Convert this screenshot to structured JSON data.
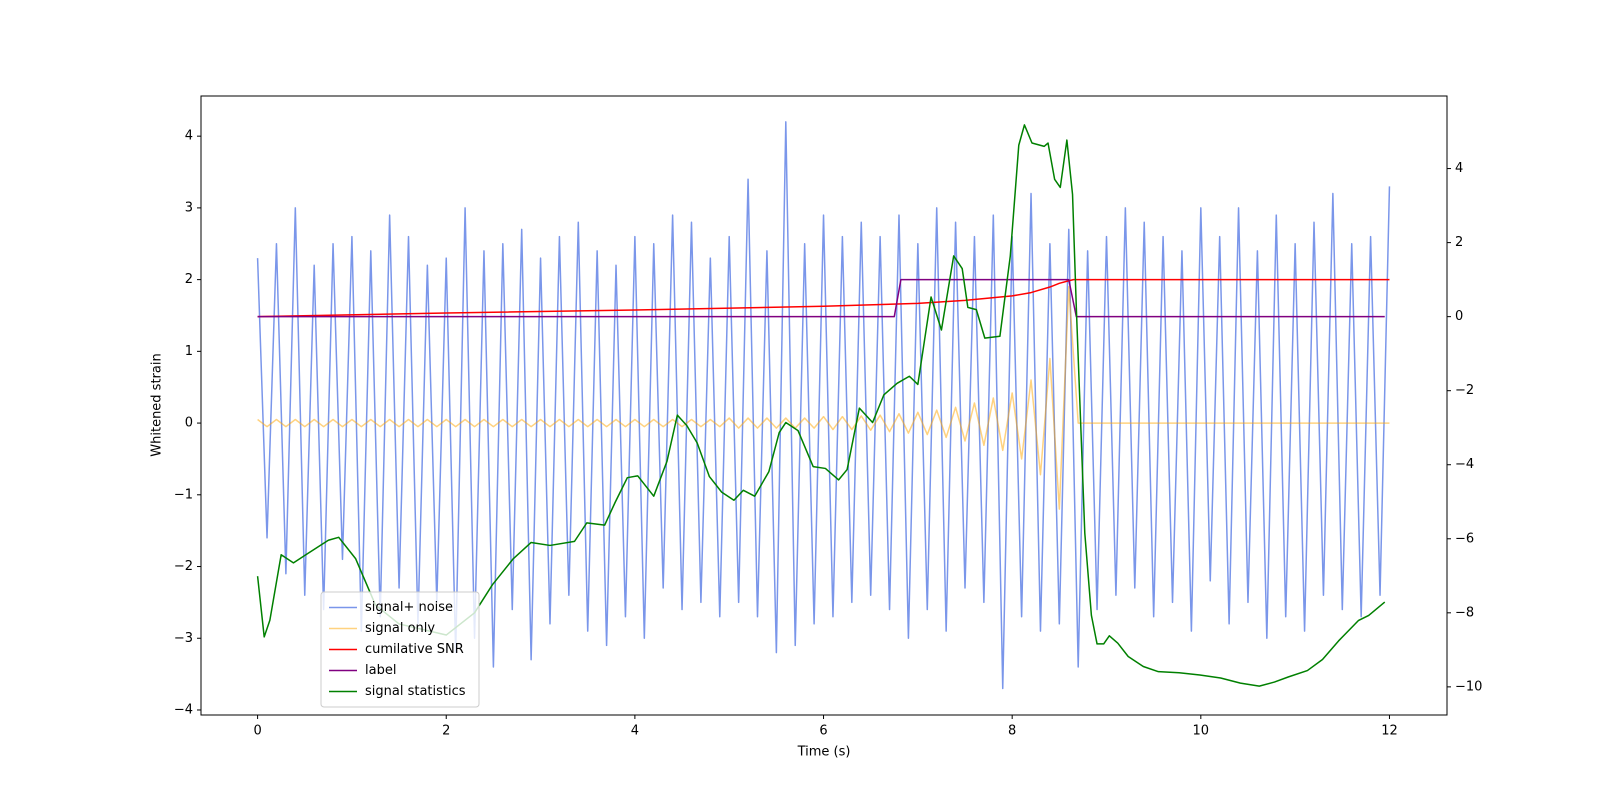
{
  "chart_data": {
    "type": "line",
    "x_label": "Time (s)",
    "y_label": "Whitened strain",
    "xlim": [
      -0.6,
      12.61
    ],
    "ylim": [
      -4.07,
      4.56
    ],
    "y2lim": [
      -10.76,
      5.96
    ],
    "xticks": [
      0,
      2,
      4,
      6,
      8,
      10,
      12
    ],
    "yticks": [
      {
        "value": -4,
        "label": "−4"
      },
      {
        "value": -3,
        "label": "−3"
      },
      {
        "value": -2,
        "label": "−2"
      },
      {
        "value": -1,
        "label": "−1"
      },
      0,
      1,
      2,
      3,
      4
    ],
    "y2ticks": [
      {
        "value": -10,
        "label": "−10"
      },
      {
        "value": -8,
        "label": "−8"
      },
      {
        "value": -6,
        "label": "−6"
      },
      {
        "value": -4,
        "label": "−4"
      },
      {
        "value": -2,
        "label": "−2"
      },
      0,
      2,
      4
    ],
    "legend": "lower left",
    "series": [
      {
        "name": "signal+ noise",
        "color": "#4169e1",
        "alpha": 0.7,
        "x": [
          0,
          0.1,
          0.2,
          0.3,
          0.4,
          0.5,
          0.6,
          0.7,
          0.8,
          0.9,
          1,
          1.1,
          1.2,
          1.3,
          1.4,
          1.5,
          1.6,
          1.7,
          1.8,
          1.9,
          2,
          2.1,
          2.2,
          2.3,
          2.4,
          2.5,
          2.6,
          2.7,
          2.8,
          2.9,
          3,
          3.1,
          3.2,
          3.3,
          3.4,
          3.5,
          3.6,
          3.7,
          3.8,
          3.9,
          4,
          4.1,
          4.2,
          4.3,
          4.4,
          4.5,
          4.6,
          4.7,
          4.8,
          4.9,
          5,
          5.1,
          5.2,
          5.3,
          5.4,
          5.5,
          5.6,
          5.7,
          5.8,
          5.9,
          6,
          6.1,
          6.2,
          6.3,
          6.4,
          6.5,
          6.6,
          6.7,
          6.8,
          6.9,
          7,
          7.1,
          7.2,
          7.3,
          7.4,
          7.5,
          7.6,
          7.7,
          7.8,
          7.9,
          8,
          8.1,
          8.2,
          8.3,
          8.4,
          8.5,
          8.6,
          8.7,
          8.8,
          8.9,
          9,
          9.1,
          9.2,
          9.3,
          9.4,
          9.5,
          9.6,
          9.7,
          9.8,
          9.9,
          10,
          10.1,
          10.2,
          10.3,
          10.4,
          10.5,
          10.6,
          10.7,
          10.8,
          10.9,
          11,
          11.1,
          11.2,
          11.3,
          11.4,
          11.5,
          11.6,
          11.7,
          11.8,
          11.9,
          12
        ],
        "values": [
          2.3,
          -1.6,
          2.5,
          -2.1,
          3.0,
          -2.4,
          2.2,
          -2.6,
          2.5,
          -1.9,
          2.6,
          -2.9,
          2.4,
          -2.7,
          2.9,
          -2.3,
          2.6,
          -2.8,
          2.2,
          -2.5,
          2.3,
          -3.2,
          3.0,
          -3.0,
          2.4,
          -3.4,
          2.5,
          -2.6,
          2.7,
          -3.3,
          2.3,
          -2.8,
          2.6,
          -2.4,
          2.8,
          -2.9,
          2.4,
          -3.1,
          2.2,
          -2.7,
          2.6,
          -3.0,
          2.5,
          -2.3,
          2.9,
          -2.6,
          2.8,
          -2.5,
          2.3,
          -2.7,
          2.6,
          -2.5,
          3.4,
          -2.7,
          2.4,
          -3.2,
          4.2,
          -3.1,
          2.5,
          -2.8,
          2.9,
          -2.7,
          2.6,
          -2.5,
          2.8,
          -2.4,
          2.6,
          -2.6,
          2.9,
          -3.0,
          2.5,
          -2.6,
          3.0,
          -2.9,
          2.8,
          -2.3,
          2.6,
          -2.5,
          2.9,
          -3.7,
          2.6,
          -2.7,
          3.2,
          -2.9,
          2.5,
          -2.8,
          2.7,
          -3.4,
          2.4,
          -2.6,
          2.6,
          -2.4,
          3.0,
          -2.3,
          2.8,
          -2.7,
          2.6,
          -2.5,
          2.4,
          -2.9,
          3.0,
          -2.2,
          2.6,
          -2.8,
          3.0,
          -2.5,
          2.4,
          -3.0,
          2.9,
          -2.7,
          2.5,
          -2.9,
          2.8,
          -2.4,
          3.2,
          -2.6,
          2.5,
          -2.7,
          2.6,
          -2.4,
          3.3
        ]
      },
      {
        "name": "signal only",
        "color": "#ffa500",
        "alpha": 0.5,
        "x": [
          0,
          0.1,
          0.2,
          0.3,
          0.4,
          0.5,
          0.6,
          0.7,
          0.8,
          0.9,
          1,
          1.1,
          1.2,
          1.3,
          1.4,
          1.5,
          1.6,
          1.7,
          1.8,
          1.9,
          2,
          2.1,
          2.2,
          2.3,
          2.4,
          2.5,
          2.6,
          2.7,
          2.8,
          2.9,
          3,
          3.1,
          3.2,
          3.3,
          3.4,
          3.5,
          3.6,
          3.7,
          3.8,
          3.9,
          4,
          4.1,
          4.2,
          4.3,
          4.4,
          4.5,
          4.6,
          4.7,
          4.8,
          4.9,
          5,
          5.1,
          5.2,
          5.3,
          5.4,
          5.5,
          5.6,
          5.7,
          5.8,
          5.9,
          6,
          6.1,
          6.2,
          6.3,
          6.4,
          6.5,
          6.6,
          6.7,
          6.8,
          6.9,
          7,
          7.1,
          7.2,
          7.3,
          7.4,
          7.5,
          7.6,
          7.7,
          7.8,
          7.9,
          8,
          8.1,
          8.2,
          8.3,
          8.4,
          8.5,
          8.6,
          8.7,
          12
        ],
        "values": [
          0.05,
          -0.05,
          0.05,
          -0.05,
          0.05,
          -0.05,
          0.05,
          -0.05,
          0.05,
          -0.05,
          0.05,
          -0.05,
          0.05,
          -0.05,
          0.05,
          -0.05,
          0.05,
          -0.05,
          0.05,
          -0.05,
          0.05,
          -0.05,
          0.05,
          -0.05,
          0.05,
          -0.05,
          0.05,
          -0.05,
          0.05,
          -0.05,
          0.05,
          -0.05,
          0.05,
          -0.05,
          0.05,
          -0.05,
          0.05,
          -0.05,
          0.05,
          -0.05,
          0.05,
          -0.05,
          0.05,
          -0.05,
          0.05,
          -0.05,
          0.05,
          -0.05,
          0.05,
          -0.05,
          0.07,
          -0.07,
          0.07,
          -0.07,
          0.07,
          -0.07,
          0.07,
          -0.07,
          0.07,
          -0.07,
          0.09,
          -0.09,
          0.09,
          -0.09,
          0.1,
          -0.1,
          0.11,
          -0.12,
          0.13,
          -0.14,
          0.15,
          -0.16,
          0.18,
          -0.2,
          0.22,
          -0.25,
          0.28,
          -0.31,
          0.35,
          -0.38,
          0.42,
          -0.5,
          0.6,
          -0.72,
          0.9,
          -1.2,
          1.9,
          0,
          0
        ]
      },
      {
        "name": "cumilative SNR",
        "color": "#ff0000",
        "axis": "y2",
        "x": [
          0,
          2,
          4,
          6,
          7,
          7.5,
          8,
          8.2,
          8.4,
          8.5,
          8.6,
          8.65,
          12
        ],
        "values": [
          0,
          0.1,
          0.18,
          0.28,
          0.36,
          0.44,
          0.56,
          0.65,
          0.8,
          0.9,
          0.97,
          1,
          1
        ]
      },
      {
        "name": "label",
        "color": "#800080",
        "axis": "y2",
        "x": [
          0,
          6.75,
          6.82,
          8.6,
          8.68,
          11.95
        ],
        "values": [
          0,
          0,
          1,
          1,
          0,
          0
        ]
      },
      {
        "name": "signal statistics",
        "color": "#008000",
        "axis": "y2",
        "x": [
          0,
          0.07,
          0.13,
          0.25,
          0.38,
          0.53,
          0.75,
          0.86,
          1.04,
          1.25,
          1.5,
          2.0,
          2.3,
          2.49,
          2.71,
          2.9,
          3.1,
          3.36,
          3.49,
          3.68,
          3.79,
          3.92,
          4.03,
          4.2,
          4.34,
          4.45,
          4.55,
          4.66,
          4.79,
          4.92,
          5.05,
          5.15,
          5.27,
          5.42,
          5.53,
          5.6,
          5.73,
          5.89,
          6.02,
          6.16,
          6.25,
          6.38,
          6.52,
          6.64,
          6.78,
          6.91,
          7.0,
          7.14,
          7.25,
          7.38,
          7.47,
          7.53,
          7.62,
          7.71,
          7.87,
          7.98,
          8.07,
          8.13,
          8.21,
          8.34,
          8.38,
          8.45,
          8.51,
          8.58,
          8.64,
          8.68,
          8.77,
          8.84,
          8.9,
          8.97,
          9.03,
          9.12,
          9.23,
          9.39,
          9.55,
          9.77,
          9.99,
          10.21,
          10.42,
          10.62,
          10.78,
          10.93,
          11.13,
          11.29,
          11.46,
          11.67,
          11.78,
          11.95
        ],
        "values": [
          -7.01,
          -8.65,
          -8.2,
          -6.43,
          -6.65,
          -6.4,
          -6.04,
          -5.96,
          -6.54,
          -7.79,
          -8.3,
          -8.6,
          -8.0,
          -7.24,
          -6.54,
          -6.1,
          -6.18,
          -6.07,
          -5.57,
          -5.63,
          -5.02,
          -4.35,
          -4.3,
          -4.85,
          -3.91,
          -2.66,
          -2.94,
          -3.41,
          -4.32,
          -4.74,
          -4.96,
          -4.69,
          -4.85,
          -4.19,
          -3.13,
          -2.86,
          -3.08,
          -4.05,
          -4.1,
          -4.41,
          -4.13,
          -2.47,
          -2.86,
          -2.11,
          -1.8,
          -1.61,
          -1.83,
          0.53,
          -0.36,
          1.64,
          1.3,
          0.25,
          0.19,
          -0.58,
          -0.53,
          1.64,
          4.63,
          5.18,
          4.69,
          4.6,
          4.69,
          3.71,
          3.49,
          4.77,
          3.3,
          0.25,
          -5.85,
          -8.07,
          -8.84,
          -8.84,
          -8.62,
          -8.82,
          -9.18,
          -9.45,
          -9.59,
          -9.62,
          -9.68,
          -9.76,
          -9.9,
          -9.98,
          -9.87,
          -9.73,
          -9.56,
          -9.26,
          -8.76,
          -8.21,
          -8.07,
          -7.71
        ]
      }
    ]
  }
}
